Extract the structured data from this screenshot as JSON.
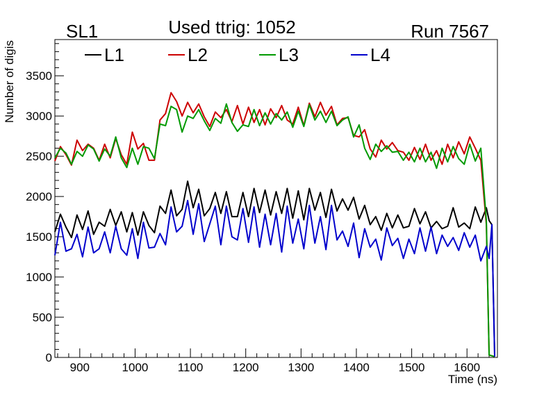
{
  "chart_data": {
    "type": "line",
    "title": "Used ttrig: 1052",
    "left_label": "SL1",
    "right_label": "Run 7567",
    "xlabel": "Time (ns)",
    "ylabel": "Number of digis",
    "xlim": [
      855,
      1655
    ],
    "ylim": [
      0,
      3950
    ],
    "xticks": [
      900,
      1000,
      1100,
      1200,
      1300,
      1400,
      1500,
      1600
    ],
    "yticks": [
      0,
      500,
      1000,
      1500,
      2000,
      2500,
      3000,
      3500
    ],
    "legend_position": "top",
    "x": [
      855,
      865,
      875,
      885,
      895,
      905,
      915,
      925,
      935,
      945,
      955,
      965,
      975,
      985,
      995,
      1005,
      1015,
      1025,
      1035,
      1045,
      1055,
      1065,
      1075,
      1085,
      1095,
      1105,
      1115,
      1125,
      1135,
      1145,
      1155,
      1165,
      1175,
      1185,
      1195,
      1205,
      1215,
      1225,
      1235,
      1245,
      1255,
      1265,
      1275,
      1285,
      1295,
      1305,
      1315,
      1325,
      1335,
      1345,
      1355,
      1365,
      1375,
      1385,
      1395,
      1405,
      1415,
      1425,
      1435,
      1445,
      1455,
      1465,
      1475,
      1485,
      1495,
      1505,
      1515,
      1525,
      1535,
      1545,
      1555,
      1565,
      1575,
      1585,
      1595,
      1605,
      1615,
      1625,
      1635,
      1640,
      1645,
      1650
    ],
    "series": [
      {
        "name": "L1",
        "color": "#000000",
        "values": [
          1560,
          1780,
          1620,
          1490,
          1770,
          1590,
          1820,
          1530,
          1680,
          1630,
          1840,
          1640,
          1810,
          1560,
          1800,
          1520,
          1810,
          1640,
          1550,
          1880,
          1790,
          2080,
          1760,
          1840,
          2190,
          1860,
          2090,
          1760,
          1850,
          2050,
          1790,
          2060,
          1750,
          1750,
          2050,
          1750,
          2100,
          1800,
          2080,
          1770,
          2060,
          1790,
          2100,
          1730,
          2070,
          1710,
          2100,
          1830,
          2050,
          1740,
          2090,
          1820,
          1970,
          1830,
          1990,
          1720,
          1890,
          1650,
          1750,
          1580,
          1790,
          1610,
          1770,
          1610,
          1630,
          1850,
          1660,
          1810,
          1610,
          1690,
          1600,
          1630,
          1860,
          1620,
          1670,
          1600,
          1870,
          1680,
          1860,
          1700,
          1650,
          20
        ]
      },
      {
        "name": "L2",
        "color": "#cc0000",
        "values": [
          2440,
          2620,
          2520,
          2390,
          2700,
          2570,
          2650,
          2600,
          2450,
          2650,
          2480,
          2720,
          2520,
          2400,
          2800,
          2590,
          2660,
          2450,
          2450,
          2950,
          3030,
          3290,
          3180,
          3000,
          3170,
          3040,
          3150,
          2990,
          2870,
          3050,
          2980,
          3080,
          2930,
          3130,
          2900,
          3110,
          2920,
          3080,
          2890,
          3090,
          2980,
          3130,
          2950,
          2900,
          3110,
          2880,
          3160,
          2990,
          3170,
          3010,
          3120,
          2890,
          2970,
          2980,
          2760,
          2740,
          2830,
          2590,
          2490,
          2700,
          2590,
          2670,
          2570,
          2550,
          2450,
          2610,
          2460,
          2650,
          2450,
          2570,
          2400,
          2650,
          2480,
          2680,
          2530,
          2740,
          2600,
          2450,
          1650,
          30,
          20,
          10
        ]
      },
      {
        "name": "L3",
        "color": "#009900",
        "values": [
          2480,
          2600,
          2540,
          2400,
          2560,
          2500,
          2640,
          2590,
          2440,
          2590,
          2500,
          2740,
          2480,
          2360,
          2600,
          2400,
          2620,
          2600,
          2470,
          2900,
          2880,
          3120,
          3080,
          2800,
          3000,
          2970,
          3080,
          2940,
          2820,
          2970,
          2910,
          3150,
          2920,
          2810,
          2890,
          2870,
          3080,
          2880,
          3040,
          2900,
          3030,
          2950,
          3050,
          2860,
          3060,
          2870,
          3140,
          2950,
          3060,
          2920,
          3060,
          2880,
          2950,
          2990,
          2740,
          2890,
          2600,
          2460,
          2650,
          2560,
          2630,
          2550,
          2560,
          2450,
          2550,
          2430,
          2600,
          2430,
          2550,
          2350,
          2600,
          2430,
          2620,
          2470,
          2400,
          2650,
          2440,
          2600,
          1700,
          30,
          20,
          10
        ]
      },
      {
        "name": "L4",
        "color": "#0000cc",
        "values": [
          1270,
          1680,
          1320,
          1350,
          1530,
          1250,
          1620,
          1300,
          1350,
          1560,
          1300,
          1630,
          1350,
          1270,
          1600,
          1230,
          1680,
          1360,
          1370,
          1540,
          1400,
          1870,
          1560,
          1630,
          1950,
          1530,
          1910,
          1440,
          1660,
          1880,
          1400,
          1880,
          1500,
          1460,
          1850,
          1430,
          1870,
          1370,
          1780,
          1400,
          1790,
          1310,
          1880,
          1420,
          1720,
          1350,
          1890,
          1420,
          1750,
          1340,
          1890,
          1460,
          1570,
          1380,
          1670,
          1240,
          1600,
          1370,
          1470,
          1210,
          1610,
          1390,
          1480,
          1230,
          1470,
          1290,
          1610,
          1320,
          1620,
          1290,
          1520,
          1380,
          1490,
          1330,
          1550,
          1370,
          1520,
          1200,
          1380,
          1230,
          1650,
          10
        ]
      }
    ]
  }
}
